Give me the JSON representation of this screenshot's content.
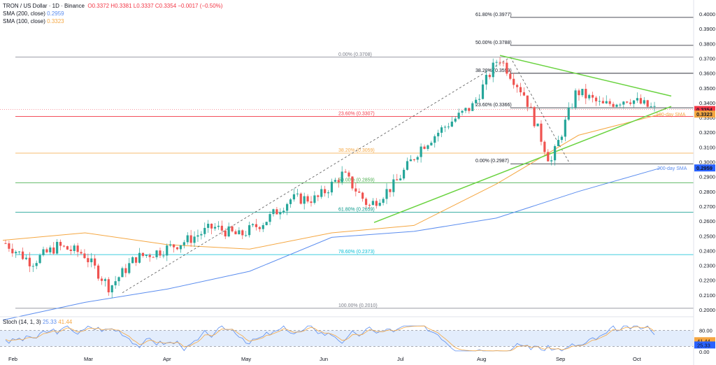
{
  "header": {
    "symbol": "TRON / US Dollar · 1D · Binance",
    "ohlc": "O0.3372 H0.3381 L0.3337 C0.3354 −0.0017 (−0.50%)",
    "sma200_label": "SMA (200, close)",
    "sma200_value": "0.2959",
    "sma100_label": "SMA (100, close)",
    "sma100_value": "0.3323"
  },
  "colors": {
    "up": "#26a69a",
    "down": "#ef5350",
    "sma200": "#5b8def",
    "sma100": "#f5a742",
    "trend": "#6ad340",
    "stoch_k": "#5b8def",
    "stoch_d": "#f5a742",
    "fib_0": "#787b86",
    "fib_236": "#f23645",
    "fib_382": "#f5a742",
    "fib_50": "#4caf50",
    "fib_618": "#009688",
    "fib_786": "#00bcd4",
    "fib_100": "#787b86"
  },
  "price_axis": {
    "ticks": [
      "0.4000",
      "0.3900",
      "0.3800",
      "0.3700",
      "0.3600",
      "0.3500",
      "0.3400",
      "0.3300",
      "0.3200",
      "0.3100",
      "0.3000",
      "0.2900",
      "0.2800",
      "0.2700",
      "0.2600",
      "0.2500",
      "0.2400",
      "0.2300",
      "0.2200",
      "0.2100",
      "0.2000"
    ],
    "last_price": "0.3354",
    "sma100_tag": "0.3323",
    "sma200_tag": "0.2959"
  },
  "time_axis": [
    "Feb",
    "Mar",
    "Apr",
    "May",
    "Jun",
    "Jul",
    "Aug",
    "Sep",
    "Oct"
  ],
  "fib_main": [
    {
      "label": "0.00% (0.3708)",
      "price": 0.3708,
      "color": "#787b86"
    },
    {
      "label": "23.60% (0.3307)",
      "price": 0.3307,
      "color": "#f23645"
    },
    {
      "label": "38.20% (0.3059)",
      "price": 0.3059,
      "color": "#f5a742"
    },
    {
      "label": "50.00% (0.2859)",
      "price": 0.2859,
      "color": "#4caf50"
    },
    {
      "label": "61.80% (0.2659)",
      "price": 0.2659,
      "color": "#009688"
    },
    {
      "label": "78.60% (0.2373)",
      "price": 0.2373,
      "color": "#00bcd4"
    },
    {
      "label": "100.00% (0.2010)",
      "price": 0.201,
      "color": "#787b86"
    }
  ],
  "fib_ext": [
    {
      "label": "61.80% (0.3977)",
      "price": 0.3977
    },
    {
      "label": "50.00% (0.3788)",
      "price": 0.3788
    },
    {
      "label": "38.20% (0.3599)",
      "price": 0.3599
    },
    {
      "label": "23.60% (0.3366)",
      "price": 0.3366
    },
    {
      "label": "0.00% (0.2987)",
      "price": 0.2987
    }
  ],
  "annotations": {
    "sma100": "100-day SMA",
    "sma200": "200-day SMA"
  },
  "stoch": {
    "label": "Stoch (14, 1, 3)",
    "k_value": "25.33",
    "d_value": "41.44",
    "ticks": [
      "80.00",
      "40.00",
      "0.00"
    ]
  },
  "chart_data": {
    "type": "candlestick",
    "title": "TRON / US Dollar · 1D · Binance",
    "ylim": [
      0.2,
      0.4
    ],
    "x_months": [
      "Feb",
      "Mar",
      "Apr",
      "May",
      "Jun",
      "Jul",
      "Aug",
      "Sep",
      "Oct"
    ],
    "price_path": [
      [
        "early Feb",
        0.245
      ],
      [
        "mid Feb",
        0.232
      ],
      [
        "late Feb",
        0.243
      ],
      [
        "early Mar",
        0.238
      ],
      [
        "mid Mar",
        0.215
      ],
      [
        "late Mar",
        0.235
      ],
      [
        "early Apr",
        0.24
      ],
      [
        "mid Apr",
        0.247
      ],
      [
        "late Apr",
        0.256
      ],
      [
        "early May",
        0.25
      ],
      [
        "mid May",
        0.26
      ],
      [
        "late May",
        0.275
      ],
      [
        "early Jun",
        0.275
      ],
      [
        "mid Jun",
        0.292
      ],
      [
        "late Jun",
        0.27
      ],
      [
        "early Jul",
        0.285
      ],
      [
        "mid Jul",
        0.31
      ],
      [
        "late Jul",
        0.325
      ],
      [
        "early Aug",
        0.338
      ],
      [
        "mid Aug",
        0.371
      ],
      [
        "late Aug",
        0.345
      ],
      [
        "early Sep",
        0.299
      ],
      [
        "mid Sep",
        0.348
      ],
      [
        "late Sep",
        0.338
      ],
      [
        "early Oct",
        0.343
      ],
      [
        "Oct last",
        0.3354
      ]
    ],
    "sma200_path": [
      0.199,
      0.21,
      0.218,
      0.232,
      0.255,
      0.258,
      0.268,
      0.282,
      0.295
    ],
    "sma100_path": [
      0.247,
      0.252,
      0.248,
      0.245,
      0.255,
      0.262,
      0.285,
      0.318,
      0.332
    ],
    "last": {
      "open": 0.3372,
      "high": 0.3381,
      "low": 0.3337,
      "close": 0.3354,
      "change": -0.0017,
      "change_pct": -0.5
    }
  }
}
